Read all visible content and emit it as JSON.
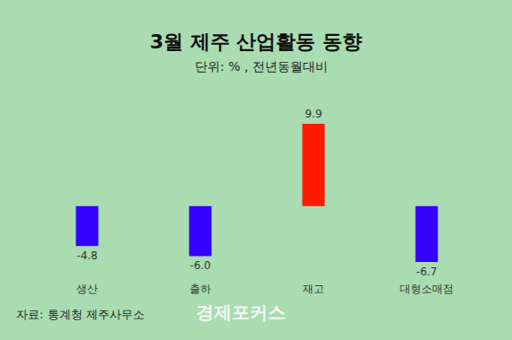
{
  "chart_data": {
    "type": "bar",
    "title": "3월 제주 산업활동 동향",
    "subtitle": "단위: % , 전년동월대비",
    "categories": [
      "생산",
      "출하",
      "재고",
      "대형소매점"
    ],
    "values": [
      -4.8,
      -6.0,
      9.9,
      -6.7
    ],
    "value_labels": [
      "-4.8",
      "-6.0",
      "9.9",
      "-6.7"
    ],
    "colors": [
      "#3300ff",
      "#3300ff",
      "#ff1a00",
      "#3300ff"
    ],
    "ylim": [
      -8,
      14
    ],
    "grid": false,
    "data_labels": true,
    "tick_labels": "x",
    "source": "자료: 통계청 제주사무소",
    "watermark": "경제포커스"
  }
}
